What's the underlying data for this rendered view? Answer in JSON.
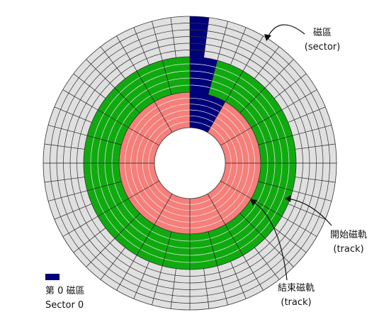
{
  "labels": {
    "sector": {
      "name": "磁區",
      "english": "(sector)"
    },
    "start_track": {
      "name": "開始磁軌",
      "english": "(track)"
    },
    "end_track": {
      "name": "結束磁軌",
      "english": "(track)"
    }
  },
  "legend": {
    "name": "第 0 磁區",
    "english": "Sector 0"
  }
}
